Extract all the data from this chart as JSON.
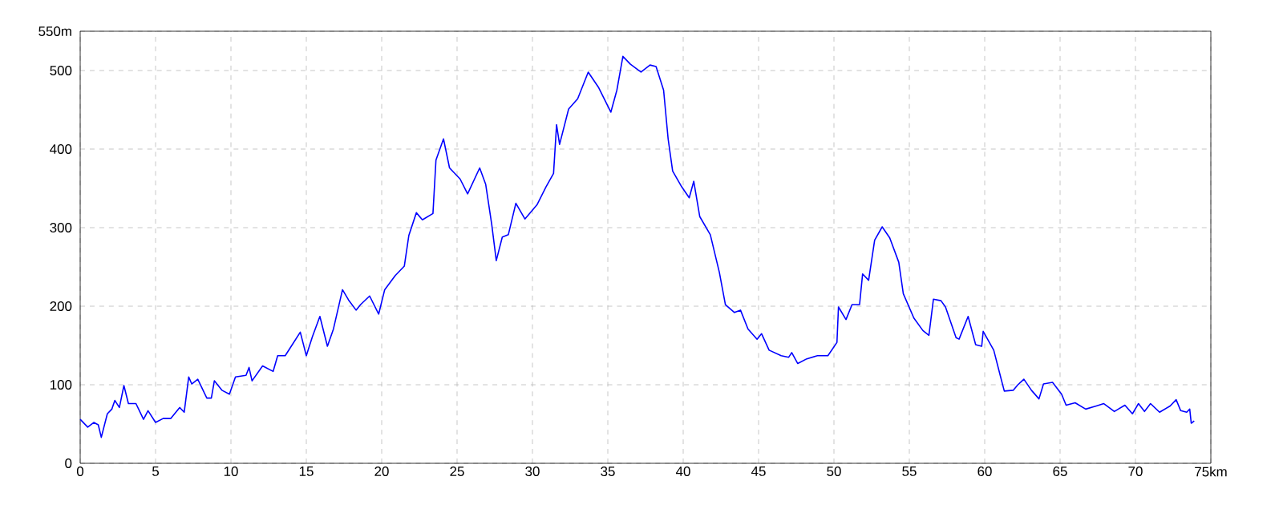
{
  "chart_data": {
    "type": "line",
    "color": "#0000ff",
    "grid": true,
    "xlim": [
      0,
      75
    ],
    "ylim": [
      0,
      550
    ],
    "xticks": [
      0,
      5,
      10,
      15,
      20,
      25,
      30,
      35,
      40,
      45,
      50,
      55,
      60,
      65,
      70,
      {
        "value": 75,
        "label": "75km"
      }
    ],
    "yticks": [
      0,
      100,
      200,
      300,
      400,
      500,
      {
        "value": 550,
        "label": "550m"
      }
    ],
    "x": [
      0,
      0.5,
      0.9,
      1.2,
      1.4,
      1.8,
      2.1,
      2.3,
      2.6,
      2.9,
      3.2,
      3.7,
      4.2,
      4.5,
      5.0,
      5.5,
      6.0,
      6.6,
      6.9,
      7.2,
      7.4,
      7.8,
      8.4,
      8.7,
      8.9,
      9.4,
      9.9,
      10.3,
      11.0,
      11.2,
      11.4,
      12.1,
      12.8,
      13.1,
      13.6,
      14.0,
      14.6,
      15.0,
      15.4,
      15.9,
      16.4,
      16.8,
      17.4,
      17.8,
      18.3,
      18.6,
      19.2,
      19.8,
      20.2,
      20.9,
      21.5,
      21.8,
      22.3,
      22.7,
      23.4,
      23.6,
      24.1,
      24.5,
      25.2,
      25.7,
      26.5,
      26.9,
      27.3,
      27.6,
      28.0,
      28.4,
      28.9,
      29.5,
      30.3,
      30.9,
      31.4,
      31.6,
      31.8,
      32.4,
      33.0,
      33.7,
      34.4,
      35.2,
      35.6,
      36.0,
      36.5,
      37.2,
      37.8,
      38.2,
      38.7,
      39.0,
      39.3,
      39.9,
      40.4,
      40.7,
      41.1,
      41.8,
      42.4,
      42.8,
      43.4,
      43.8,
      44.3,
      44.9,
      45.2,
      45.7,
      46.5,
      47.0,
      47.2,
      47.6,
      48.2,
      48.9,
      49.6,
      50.2,
      50.3,
      50.8,
      51.2,
      51.7,
      51.9,
      52.3,
      52.7,
      53.2,
      53.7,
      54.3,
      54.6,
      55.3,
      55.9,
      56.3,
      56.6,
      57.1,
      57.4,
      58.1,
      58.3,
      58.9,
      59.4,
      59.8,
      59.9,
      60.6,
      61.0,
      61.3,
      61.9,
      62.2,
      62.6,
      63.1,
      63.6,
      63.9,
      64.5,
      65.1,
      65.4,
      66.0,
      66.7,
      67.4,
      67.9,
      68.6,
      69.3,
      69.8,
      70.2,
      70.6,
      71.0,
      71.6,
      72.3,
      72.7,
      73.0,
      73.4,
      73.6,
      73.7,
      73.9
    ],
    "values": [
      56,
      46,
      52,
      49,
      33,
      63,
      69,
      80,
      71,
      99,
      76,
      76,
      56,
      67,
      52,
      57,
      57,
      71,
      65,
      110,
      101,
      107,
      83,
      83,
      105,
      93,
      88,
      110,
      112,
      122,
      105,
      124,
      117,
      137,
      137,
      149,
      167,
      137,
      161,
      187,
      149,
      171,
      221,
      208,
      195,
      202,
      213,
      190,
      221,
      239,
      251,
      290,
      319,
      310,
      318,
      386,
      413,
      376,
      362,
      343,
      376,
      355,
      304,
      258,
      288,
      291,
      331,
      311,
      329,
      352,
      369,
      431,
      406,
      451,
      464,
      498,
      478,
      447,
      475,
      518,
      508,
      498,
      507,
      505,
      475,
      413,
      372,
      352,
      338,
      359,
      314,
      291,
      243,
      202,
      192,
      195,
      171,
      158,
      165,
      144,
      137,
      135,
      141,
      127,
      133,
      137,
      137,
      154,
      199,
      183,
      202,
      202,
      241,
      233,
      284,
      301,
      287,
      256,
      216,
      185,
      169,
      163,
      209,
      207,
      199,
      160,
      158,
      187,
      151,
      149,
      168,
      144,
      114,
      92,
      93,
      100,
      107,
      93,
      82,
      101,
      103,
      88,
      74,
      77,
      69,
      73,
      76,
      66,
      74,
      63,
      76,
      66,
      76,
      65,
      73,
      81,
      67,
      65,
      69,
      51,
      54
    ]
  }
}
